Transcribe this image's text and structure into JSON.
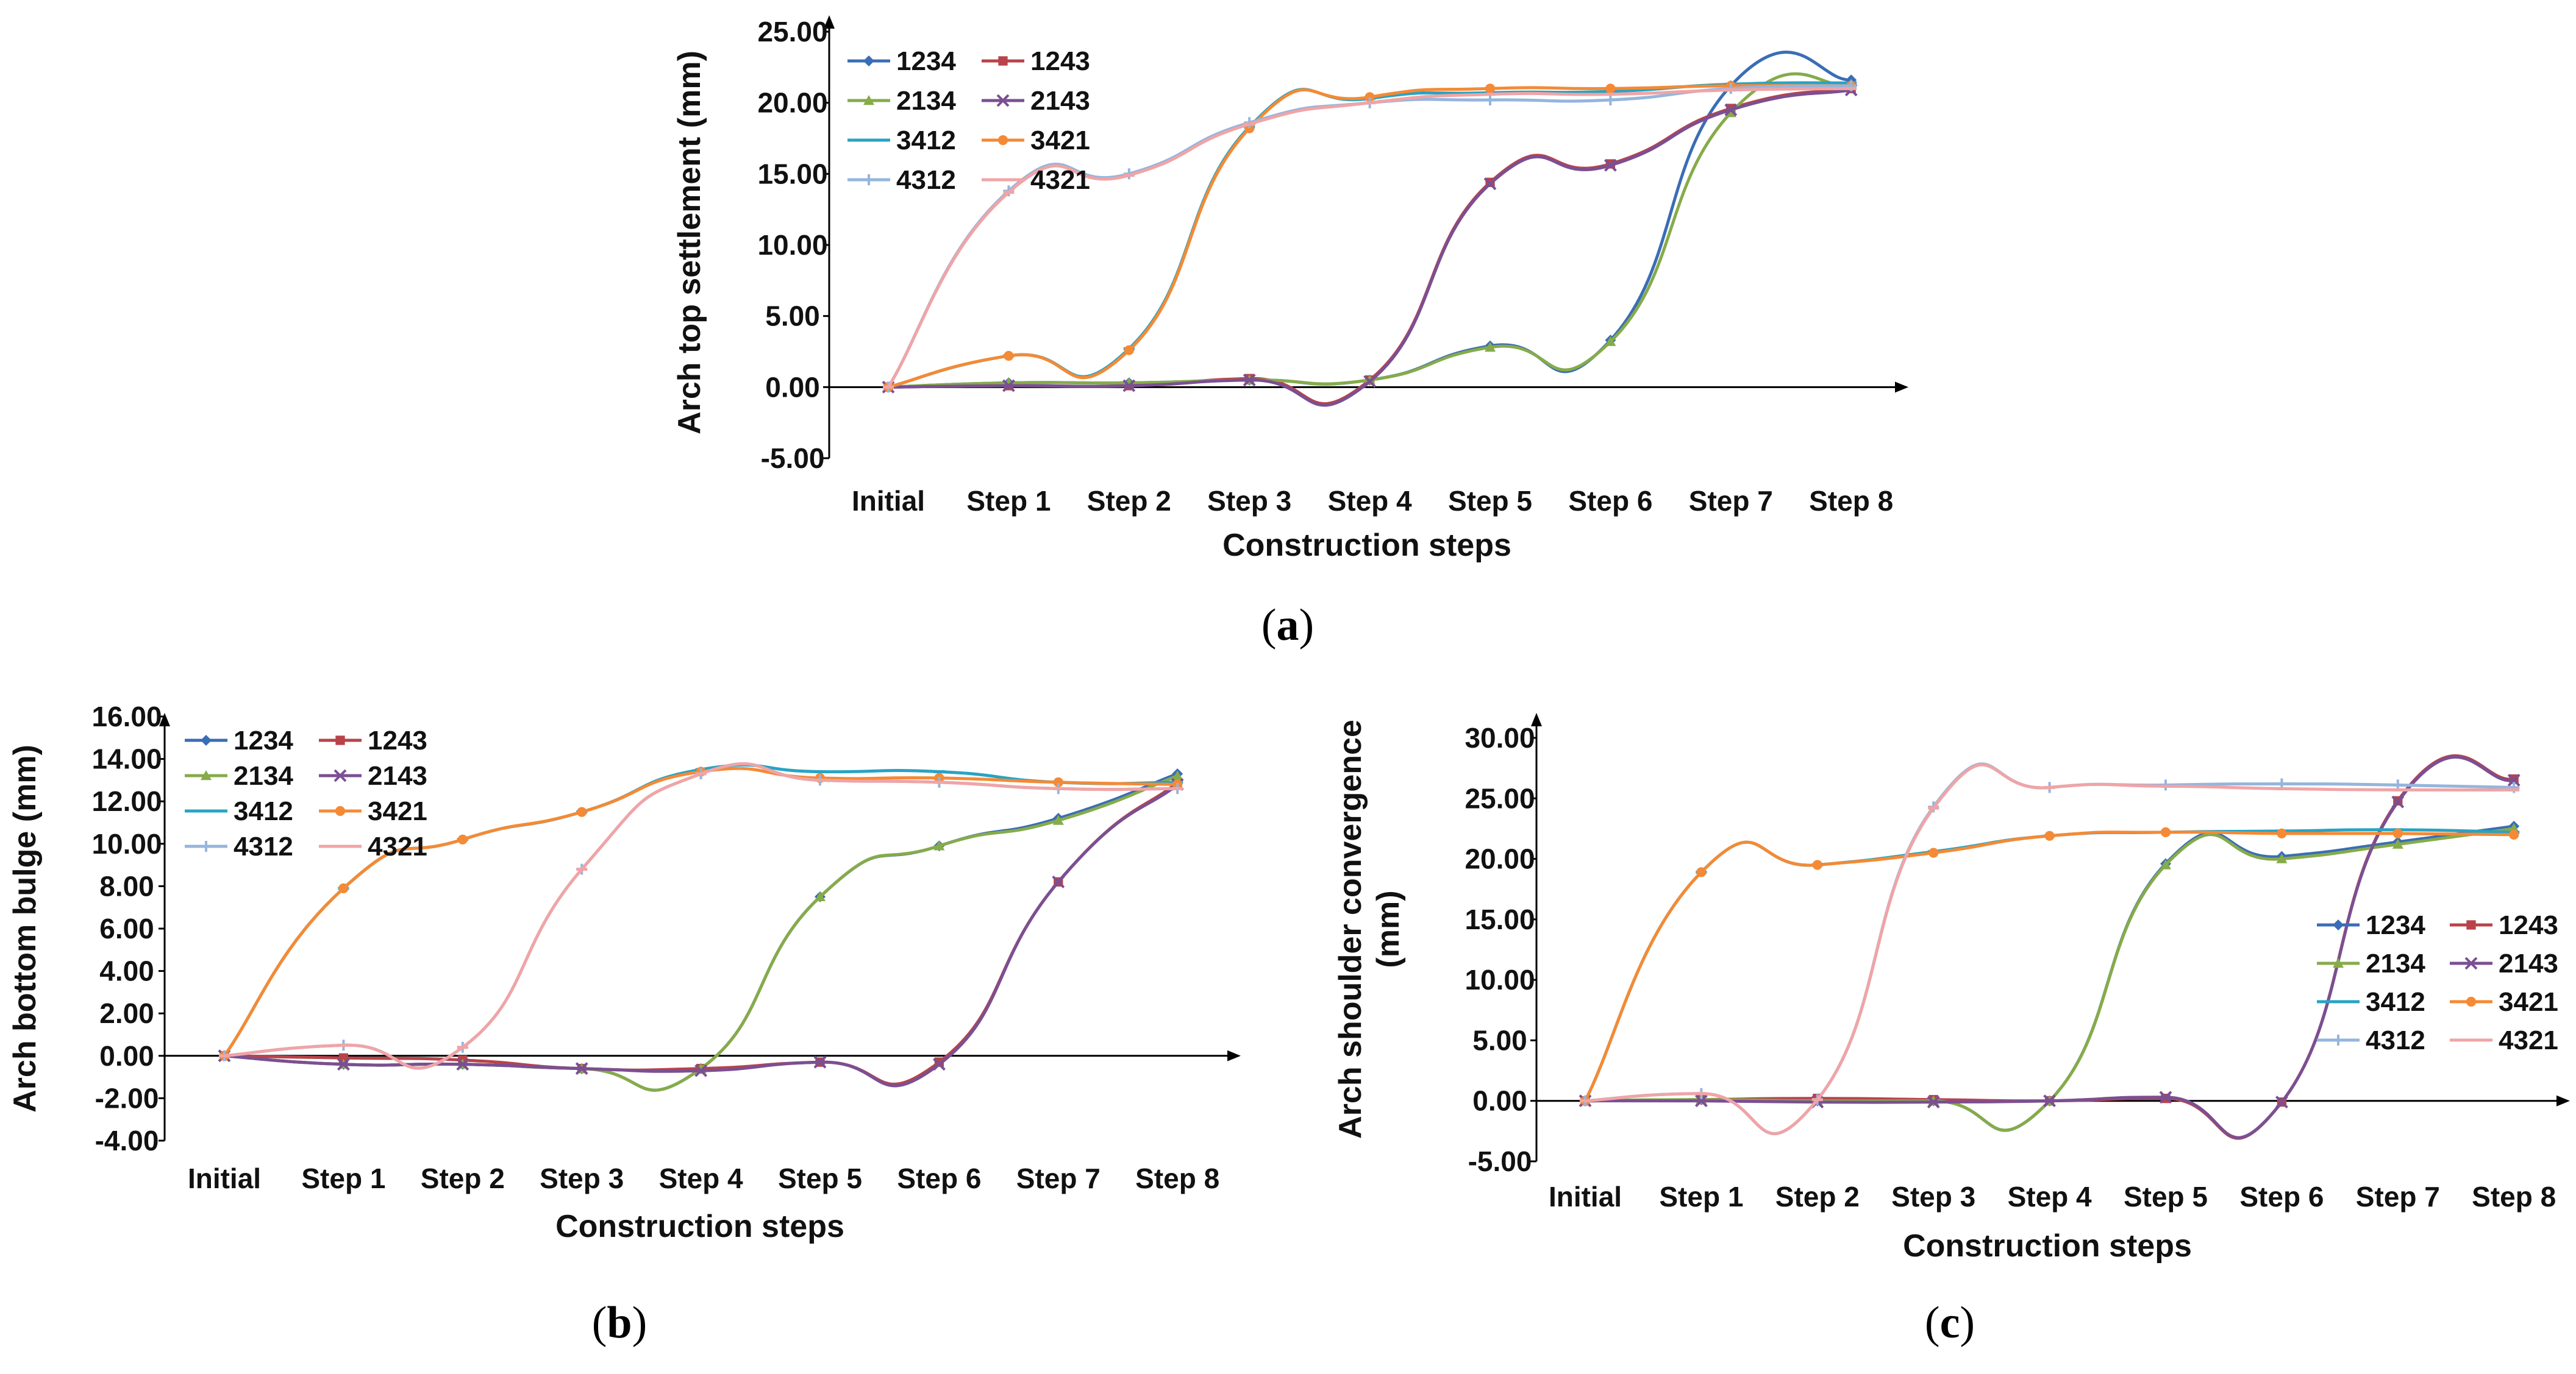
{
  "colors": {
    "1234": "#3a6db5",
    "1243": "#b8434a",
    "2134": "#86ab4a",
    "2143": "#7b4f92",
    "3412": "#28a3c4",
    "3421": "#f48a35",
    "4312": "#95b5dd",
    "4321": "#f0a4a6"
  },
  "chart_data": [
    {
      "id": "a",
      "type": "line",
      "caption_letter": "a",
      "xlabel": "Construction steps",
      "ylabel": "Arch top settlement (mm)",
      "categories": [
        "Initial",
        "Step 1",
        "Step 2",
        "Step 3",
        "Step 4",
        "Step 5",
        "Step 6",
        "Step 7",
        "Step 8"
      ],
      "ylim": [
        -5,
        25
      ],
      "yticks": [
        -5,
        0,
        5,
        10,
        15,
        20,
        25
      ],
      "ytick_labels": [
        "-5.00",
        "0.00",
        "5.00",
        "10.00",
        "15.00",
        "20.00",
        "25.00"
      ],
      "legend_position": "top-left",
      "series": [
        {
          "name": "1234",
          "values": [
            0,
            0.3,
            0.3,
            0.5,
            0.5,
            2.9,
            3.3,
            21.2,
            21.6
          ]
        },
        {
          "name": "1243",
          "values": [
            0,
            0.1,
            0.1,
            0.6,
            0.5,
            14.4,
            15.7,
            19.6,
            21.0
          ]
        },
        {
          "name": "2134",
          "values": [
            0,
            0.3,
            0.3,
            0.5,
            0.5,
            2.8,
            3.2,
            19.3,
            21.3
          ]
        },
        {
          "name": "2143",
          "values": [
            0,
            0.1,
            0.1,
            0.5,
            0.4,
            14.3,
            15.6,
            19.5,
            20.9
          ]
        },
        {
          "name": "3412",
          "values": [
            0,
            2.2,
            2.7,
            18.3,
            20.3,
            20.7,
            20.8,
            21.3,
            21.4
          ]
        },
        {
          "name": "3421",
          "values": [
            0,
            2.2,
            2.6,
            18.2,
            20.4,
            21.0,
            21.0,
            21.2,
            21.2
          ]
        },
        {
          "name": "4312",
          "values": [
            0,
            13.8,
            15.0,
            18.6,
            20.0,
            20.2,
            20.2,
            21.0,
            21.2
          ]
        },
        {
          "name": "4321",
          "values": [
            0,
            13.7,
            14.9,
            18.5,
            20.0,
            20.6,
            20.6,
            20.9,
            21.0
          ]
        }
      ]
    },
    {
      "id": "b",
      "type": "line",
      "caption_letter": "b",
      "xlabel": "Construction steps",
      "ylabel": "Arch bottom bulge (mm)",
      "categories": [
        "Initial",
        "Step 1",
        "Step 2",
        "Step 3",
        "Step 4",
        "Step 5",
        "Step 6",
        "Step 7",
        "Step 8"
      ],
      "ylim": [
        -4,
        16
      ],
      "yticks": [
        -4,
        -2,
        0,
        2,
        4,
        6,
        8,
        10,
        12,
        14,
        16
      ],
      "ytick_labels": [
        "-4.00",
        "-2.00",
        "0.00",
        "2.00",
        "4.00",
        "6.00",
        "8.00",
        "10.00",
        "12.00",
        "14.00",
        "16.00"
      ],
      "legend_position": "top-left",
      "series": [
        {
          "name": "1234",
          "values": [
            0,
            -0.4,
            -0.4,
            -0.6,
            -0.6,
            7.5,
            9.9,
            11.2,
            13.3
          ]
        },
        {
          "name": "1243",
          "values": [
            0,
            -0.1,
            -0.2,
            -0.6,
            -0.6,
            -0.3,
            -0.3,
            8.2,
            12.9
          ]
        },
        {
          "name": "2134",
          "values": [
            0,
            -0.4,
            -0.4,
            -0.6,
            -0.6,
            7.5,
            9.9,
            11.1,
            13.2
          ]
        },
        {
          "name": "2143",
          "values": [
            0,
            -0.4,
            -0.4,
            -0.6,
            -0.7,
            -0.3,
            -0.4,
            8.2,
            12.8
          ]
        },
        {
          "name": "3412",
          "values": [
            0,
            7.9,
            10.2,
            11.5,
            13.5,
            13.4,
            13.4,
            12.9,
            12.9
          ]
        },
        {
          "name": "3421",
          "values": [
            0,
            7.9,
            10.2,
            11.5,
            13.4,
            13.1,
            13.1,
            12.9,
            12.8
          ]
        },
        {
          "name": "4312",
          "values": [
            0,
            0.5,
            0.4,
            8.8,
            13.3,
            13.0,
            12.9,
            12.6,
            12.6
          ]
        },
        {
          "name": "4321",
          "values": [
            0,
            0.5,
            0.4,
            8.8,
            13.3,
            13.0,
            12.9,
            12.6,
            12.6
          ]
        }
      ]
    },
    {
      "id": "c",
      "type": "line",
      "caption_letter": "c",
      "xlabel": "Construction steps",
      "ylabel": "Arch shoulder convergence (mm)",
      "ylabel_lines": [
        "Arch shoulder convergence",
        "(mm)"
      ],
      "categories": [
        "Initial",
        "Step 1",
        "Step 2",
        "Step 3",
        "Step 4",
        "Step 5",
        "Step 6",
        "Step 7",
        "Step 8"
      ],
      "ylim": [
        -5,
        30
      ],
      "yticks": [
        -5,
        0,
        5,
        10,
        15,
        20,
        25,
        30
      ],
      "ytick_labels": [
        "-5.00",
        "0.00",
        "5.00",
        "10.00",
        "15.00",
        "20.00",
        "25.00",
        "30.00"
      ],
      "legend_position": "right",
      "series": [
        {
          "name": "1234",
          "values": [
            0,
            0.1,
            0,
            0,
            0,
            19.6,
            20.2,
            21.4,
            22.7
          ]
        },
        {
          "name": "1243",
          "values": [
            0,
            0.1,
            0.2,
            0.1,
            0,
            0.2,
            -0.1,
            24.8,
            26.6
          ]
        },
        {
          "name": "2134",
          "values": [
            0,
            0.1,
            0,
            0,
            0,
            19.5,
            20.0,
            21.2,
            22.5
          ]
        },
        {
          "name": "2143",
          "values": [
            0,
            0,
            -0.1,
            -0.1,
            0,
            0.3,
            -0.1,
            24.7,
            26.5
          ]
        },
        {
          "name": "3412",
          "values": [
            0,
            18.9,
            19.5,
            20.6,
            21.9,
            22.2,
            22.3,
            22.4,
            22.2
          ]
        },
        {
          "name": "3421",
          "values": [
            0,
            18.9,
            19.5,
            20.5,
            21.9,
            22.2,
            22.1,
            22.1,
            22.0
          ]
        },
        {
          "name": "4312",
          "values": [
            0,
            0.6,
            0.1,
            24.3,
            25.9,
            26.1,
            26.2,
            26.1,
            25.9
          ]
        },
        {
          "name": "4321",
          "values": [
            0,
            0.6,
            0.1,
            24.2,
            25.9,
            26.0,
            25.8,
            25.7,
            25.7
          ]
        }
      ]
    }
  ]
}
